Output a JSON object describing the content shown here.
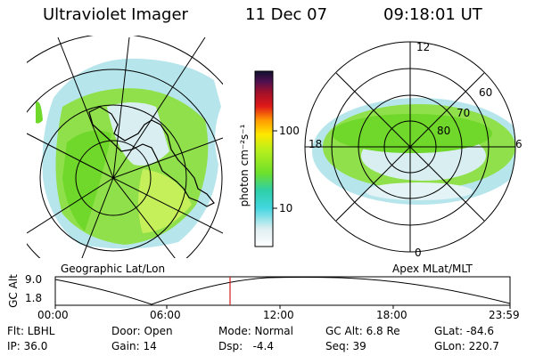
{
  "header": {
    "instrument": "Ultraviolet Imager",
    "date": "11 Dec 07",
    "time": "09:18:01 UT"
  },
  "left_panel": {
    "caption": "Geographic Lat/Lon"
  },
  "right_panel": {
    "caption": "Apex MLat/MLT",
    "mlt_labels": {
      "top": "12",
      "bottom": "0",
      "left": "18",
      "right": "6"
    },
    "lat_labels": [
      "60",
      "70",
      "80"
    ]
  },
  "colorbar": {
    "label": "photon cm⁻²s⁻¹",
    "ticks": [
      "100",
      "10"
    ]
  },
  "altitude_plot": {
    "y_label": "GC Alt",
    "y_ticks": [
      "9.0",
      "1.8"
    ],
    "x_ticks": [
      "00:00",
      "06:00",
      "12:00",
      "18:00",
      "23:59"
    ],
    "marker_color": "#d02020"
  },
  "footer": {
    "row1": {
      "flt": "Flt: LBHL",
      "door": "Door: Open",
      "mode": "Mode: Normal",
      "gc_alt": "GC Alt: 6.8 Re",
      "glat": "GLat: -84.6"
    },
    "row2": {
      "ip": "IP: 36.0",
      "gain": "Gain: 14",
      "dsp": "Dsp:   -4.4",
      "seq": "Seq: 39",
      "glon": "GLon: 220.7"
    }
  }
}
